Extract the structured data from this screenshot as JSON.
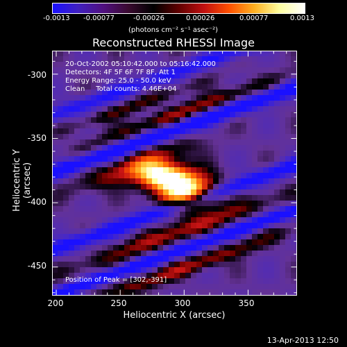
{
  "colorbar": {
    "ticks": [
      "-0.0013",
      "-0.00077",
      "-0.00026",
      "0.00026",
      "0.00077",
      "0.0013"
    ],
    "unit": "(photons cm⁻² s⁻¹ asec⁻²)",
    "colormap": [
      "#1a10ff",
      "#4020c0",
      "#501080",
      "#3a0a30",
      "#000000",
      "#600000",
      "#c01010",
      "#ff5000",
      "#ffb020",
      "#ffffa0",
      "#ffffff"
    ]
  },
  "plot": {
    "title": "Reconstructed RHESSI Image",
    "info": {
      "time_range": "20-Oct-2002 05:10:42.000 to 05:16:42.000",
      "detectors": "Detectors: 4F 5F 6F 7F 8F, Att 1",
      "energy": "Energy Range: 25.0 - 50.0 keV",
      "method": "Clean     Total counts: 4.46E+04"
    },
    "peak": "Position of Peak = [302,-391]",
    "x_axis_label": "Heliocentric X (arcsec)",
    "y_axis_label": "Heliocentric Y (arcsec)",
    "x_ticks": [
      "200",
      "250",
      "300",
      "350"
    ],
    "y_ticks": [
      "-300",
      "-350",
      "-400",
      "-450"
    ],
    "timestamp": "13-Apr-2013 12:50"
  },
  "chart_data": {
    "type": "heatmap",
    "title": "Reconstructed RHESSI Image",
    "xlabel": "Heliocentric X (arcsec)",
    "ylabel": "Heliocentric Y (arcsec)",
    "xlim": [
      197,
      388
    ],
    "ylim": [
      -472,
      -282
    ],
    "value_range": [
      -0.0013,
      0.0013
    ],
    "peak": {
      "x": 302,
      "y": -391
    },
    "grid": false
  }
}
